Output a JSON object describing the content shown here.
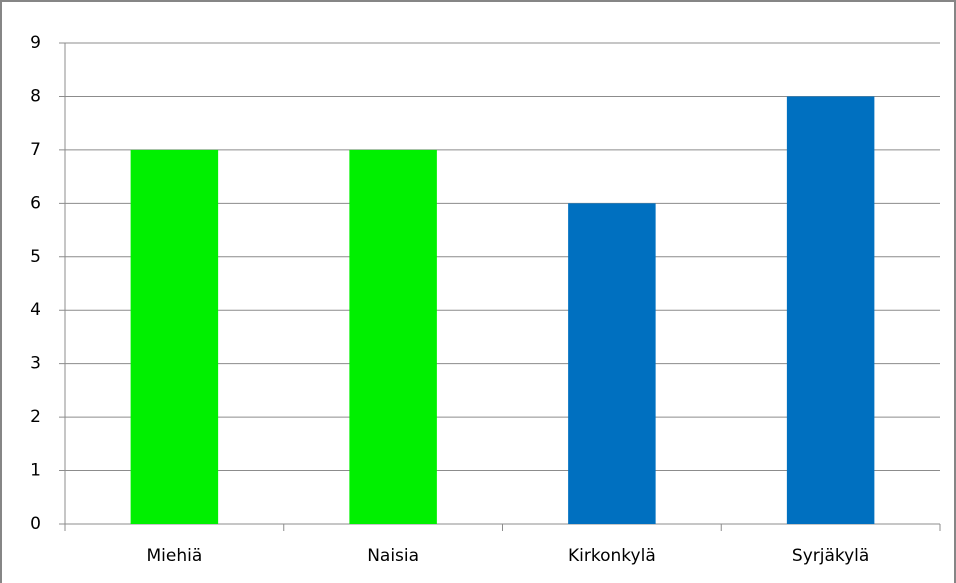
{
  "chart_data": {
    "type": "bar",
    "categories": [
      "Miehiä",
      "Naisia",
      "Kirkonkylä",
      "Syrjäkylä"
    ],
    "values": [
      7,
      7,
      6,
      8
    ],
    "colors": [
      "#00f000",
      "#00f000",
      "#0070c0",
      "#0070c0"
    ],
    "ylim": [
      0,
      9
    ],
    "yticks": [
      0,
      1,
      2,
      3,
      4,
      5,
      6,
      7,
      8,
      9
    ],
    "grid": true
  }
}
